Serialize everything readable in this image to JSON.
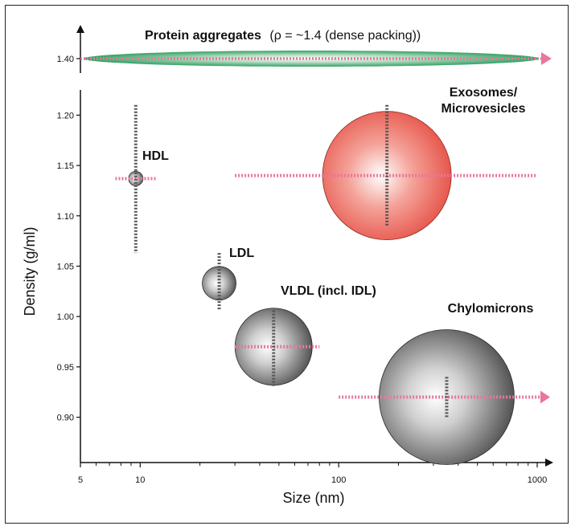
{
  "chart_data": {
    "type": "scatter",
    "title": "",
    "xlabel": "Size (nm)",
    "ylabel": "Density (g/ml)",
    "x_scale": "log",
    "xlim": [
      5,
      1000
    ],
    "ylim": [
      0.855,
      1.225
    ],
    "x_ticks": [
      {
        "value": 5,
        "label": "5"
      },
      {
        "value": 10,
        "label": "10"
      },
      {
        "value": 100,
        "label": "100"
      },
      {
        "value": 1000,
        "label": "1000"
      }
    ],
    "x_minor_ticks": [
      6,
      7,
      8,
      9,
      20,
      30,
      40,
      50,
      60,
      70,
      80,
      90,
      200,
      300,
      400,
      500,
      600,
      700,
      800,
      900
    ],
    "y_ticks": [
      {
        "value": 0.9,
        "label": "0.90"
      },
      {
        "value": 0.95,
        "label": "0.95"
      },
      {
        "value": 1.0,
        "label": "1.00"
      },
      {
        "value": 1.05,
        "label": "1.05"
      },
      {
        "value": 1.1,
        "label": "1.10"
      },
      {
        "value": 1.15,
        "label": "1.15"
      },
      {
        "value": 1.2,
        "label": "1.20"
      }
    ],
    "top_panel": {
      "label": "Protein aggregates",
      "sublabel": "(ρ = ~1.4 (dense packing))",
      "y_tick": {
        "value": 1.4,
        "label": "1.40"
      },
      "x_from": 5,
      "x_to": 1000
    },
    "series": [
      {
        "name": "HDL",
        "label": "HDL",
        "size_nm": 9.5,
        "density": 1.137,
        "size_range": [
          7.5,
          12
        ],
        "density_range": [
          1.063,
          1.21
        ],
        "style": "gray"
      },
      {
        "name": "LDL",
        "label": "LDL",
        "size_nm": 25,
        "density": 1.033,
        "size_range": [
          25,
          25
        ],
        "density_range": [
          1.006,
          1.063
        ],
        "style": "gray"
      },
      {
        "name": "VLDL (incl. IDL)",
        "label": "VLDL (incl. IDL)",
        "size_nm": 47,
        "density": 0.97,
        "size_range": [
          30,
          80
        ],
        "density_range": [
          0.93,
          1.006
        ],
        "style": "gray"
      },
      {
        "name": "Exosomes/Microvesicles",
        "label_lines": [
          "Exosomes/",
          "Microvesicles"
        ],
        "size_nm": 175,
        "density": 1.14,
        "size_range": [
          30,
          1000
        ],
        "density_range": [
          1.09,
          1.21
        ],
        "style": "red"
      },
      {
        "name": "Chylomicrons",
        "label": "Chylomicrons",
        "size_nm": 350,
        "density": 0.92,
        "size_range": [
          100,
          1000
        ],
        "density_range": [
          0.9,
          0.94
        ],
        "style": "gray",
        "arrow": true
      }
    ]
  }
}
